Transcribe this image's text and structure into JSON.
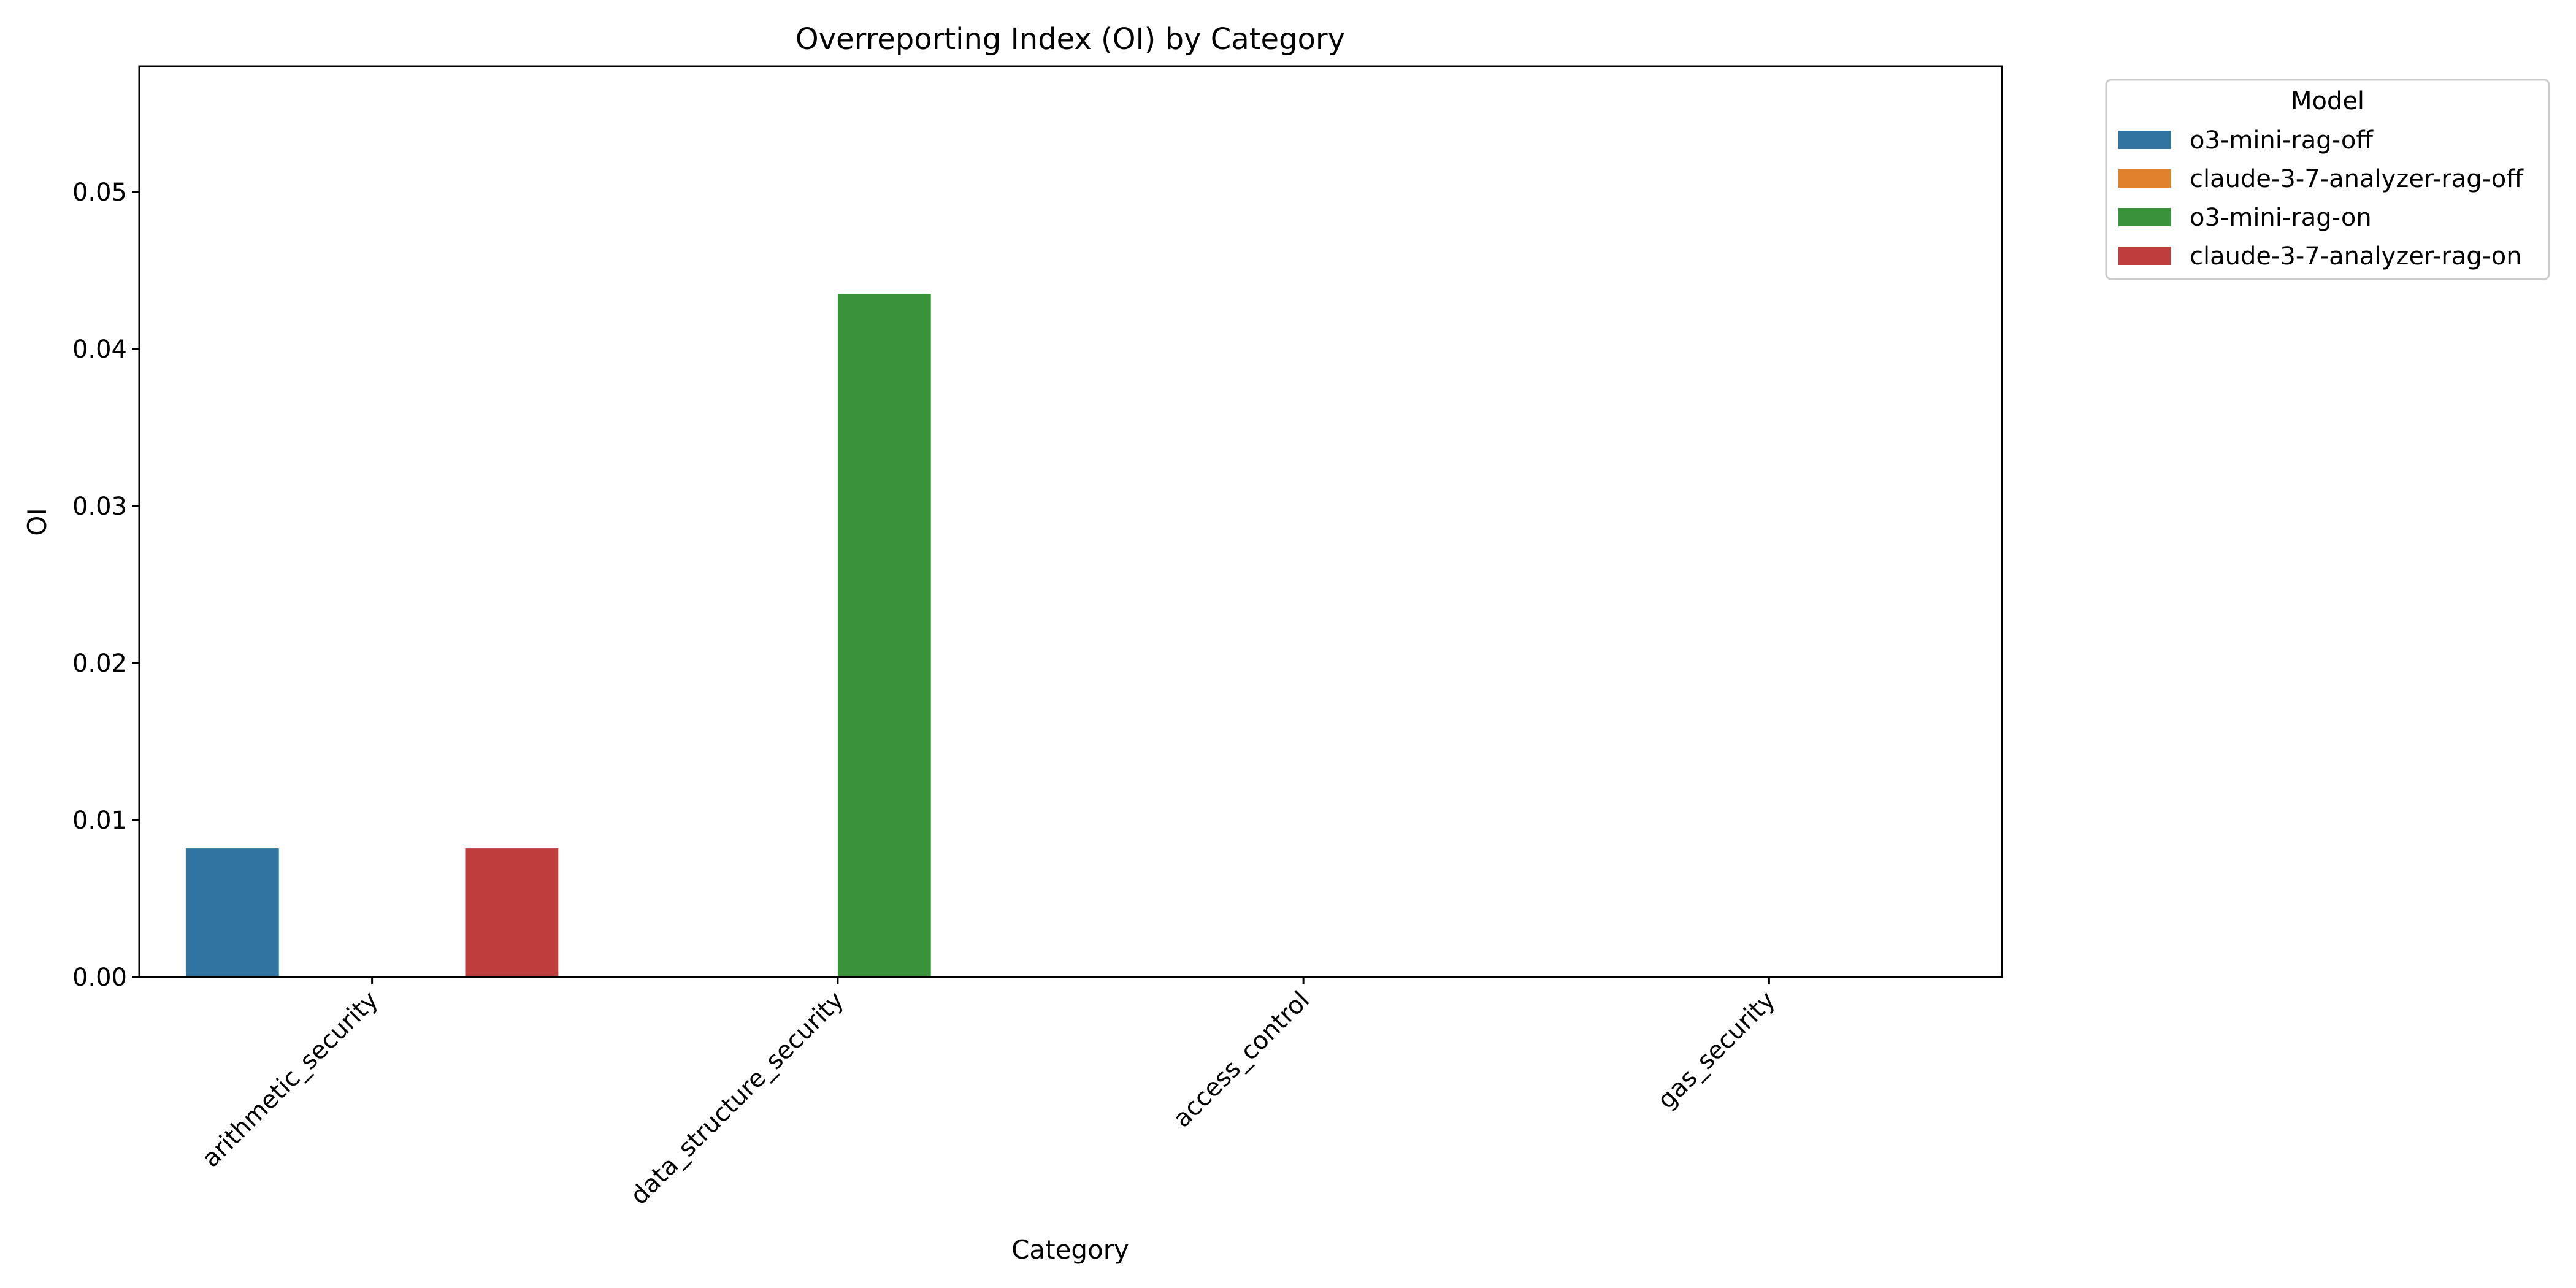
{
  "chart_data": {
    "type": "bar",
    "title": "Overreporting Index (OI) by Category",
    "xlabel": "Category",
    "ylabel": "OI",
    "categories": [
      "arithmetic_security",
      "data_structure_security",
      "access_control",
      "gas_security"
    ],
    "series": [
      {
        "name": "o3-mini-rag-off",
        "color": "#3274a1",
        "values": [
          0.0082,
          0,
          0,
          0
        ]
      },
      {
        "name": "claude-3-7-analyzer-rag-off",
        "color": "#e1812c",
        "values": [
          0,
          0,
          0,
          0
        ]
      },
      {
        "name": "o3-mini-rag-on",
        "color": "#3a923a",
        "values": [
          0,
          0.0435,
          0,
          0
        ]
      },
      {
        "name": "claude-3-7-analyzer-rag-on",
        "color": "#c03d3e",
        "values": [
          0.0082,
          0,
          0,
          0
        ]
      }
    ],
    "ylim": [
      0,
      0.058
    ],
    "yticks": [
      0.0,
      0.01,
      0.02,
      0.03,
      0.04,
      0.05
    ],
    "ytick_labels": [
      "0.00",
      "0.01",
      "0.02",
      "0.03",
      "0.04",
      "0.05"
    ],
    "legend": {
      "title": "Model",
      "placement": "outside-top-right"
    },
    "grid": false
  }
}
